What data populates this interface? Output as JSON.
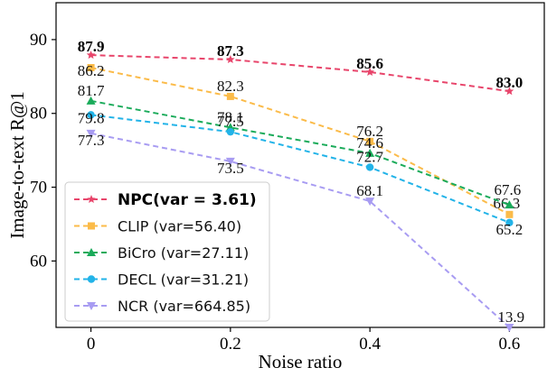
{
  "chart_data": {
    "type": "line",
    "xlabel": "Noise ratio",
    "ylabel": "Image-to-text R@1",
    "x": [
      0,
      0.2,
      0.4,
      0.6
    ],
    "x_tick_labels": [
      "0",
      "0.2",
      "0.4",
      "0.6"
    ],
    "xlim": [
      -0.05,
      0.65
    ],
    "ylim": [
      51,
      95
    ],
    "y_ticks": [
      60,
      70,
      80,
      90
    ],
    "y_tick_labels": [
      "60",
      "70",
      "80",
      "90"
    ],
    "grid": false,
    "legend_position": "bottom-left",
    "series": [
      {
        "name": "NPC(var = 3.61)",
        "values": [
          87.9,
          87.3,
          85.6,
          83.0
        ],
        "labels": [
          "87.9",
          "87.3",
          "85.6",
          "83.0"
        ],
        "color": "#e8456b",
        "marker": "star",
        "bold": true
      },
      {
        "name": "CLIP (var=56.40)",
        "values": [
          86.2,
          82.3,
          76.2,
          66.3
        ],
        "labels": [
          "86.2",
          "82.3",
          "76.2",
          "66.3"
        ],
        "color": "#fbbb49",
        "marker": "square",
        "bold": false
      },
      {
        "name": "BiCro (var=27.11)",
        "values": [
          81.7,
          78.1,
          74.6,
          67.6
        ],
        "labels": [
          "81.7",
          "78.1",
          "74.6",
          "67.6"
        ],
        "color": "#1aab5a",
        "marker": "triangle-up",
        "bold": false
      },
      {
        "name": "DECL (var=31.21)",
        "values": [
          79.8,
          77.5,
          72.7,
          65.2
        ],
        "labels": [
          "79.8",
          "77.5",
          "72.7",
          "65.2"
        ],
        "color": "#22b3e8",
        "marker": "circle",
        "bold": false
      },
      {
        "name": "NCR (var=664.85)",
        "values": [
          77.3,
          73.5,
          68.1,
          13.9
        ],
        "labels": [
          "77.3",
          "73.5",
          "68.1",
          "13.9"
        ],
        "color": "#a89cf2",
        "marker": "triangle-down",
        "bold": false
      }
    ]
  }
}
